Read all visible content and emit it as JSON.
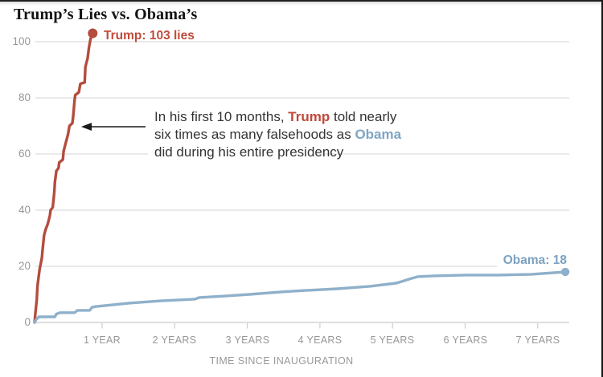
{
  "chart_data": {
    "type": "line",
    "title": "Trump’s Lies vs. Obama’s",
    "xlabel": "TIME SINCE INAUGURATION",
    "x_unit": "years since inauguration",
    "xlim": [
      0,
      7.9
    ],
    "ylim": [
      0,
      105
    ],
    "grid": "horizontal",
    "y_ticks": [
      0,
      20,
      40,
      60,
      80,
      100
    ],
    "y_tick_labels": [
      "0",
      "20",
      "40",
      "60",
      "80",
      "100"
    ],
    "x_ticks": [
      1,
      2,
      3,
      4,
      5,
      6,
      7
    ],
    "x_tick_labels": [
      "1 YEAR",
      "2 YEARS",
      "3 YEARS",
      "4 YEARS",
      "5 YEARS",
      "6 YEARS",
      "7 YEARS"
    ],
    "series": [
      {
        "name": "Trump",
        "label": "Trump: 103 lies",
        "final_value": 103,
        "color": "#b34d3e",
        "label_color": "#c14b3b",
        "points": [
          [
            0.07,
            0
          ],
          [
            0.08,
            3
          ],
          [
            0.1,
            8
          ],
          [
            0.11,
            13
          ],
          [
            0.14,
            19
          ],
          [
            0.17,
            23
          ],
          [
            0.18,
            26
          ],
          [
            0.2,
            31
          ],
          [
            0.22,
            33
          ],
          [
            0.25,
            35
          ],
          [
            0.28,
            38
          ],
          [
            0.29,
            40
          ],
          [
            0.32,
            41
          ],
          [
            0.34,
            46
          ],
          [
            0.35,
            50
          ],
          [
            0.37,
            54
          ],
          [
            0.4,
            55
          ],
          [
            0.41,
            57
          ],
          [
            0.46,
            58
          ],
          [
            0.47,
            61
          ],
          [
            0.5,
            64
          ],
          [
            0.53,
            67
          ],
          [
            0.55,
            70
          ],
          [
            0.59,
            71
          ],
          [
            0.6,
            73
          ],
          [
            0.61,
            76
          ],
          [
            0.62,
            79
          ],
          [
            0.63,
            81
          ],
          [
            0.68,
            82
          ],
          [
            0.7,
            85
          ],
          [
            0.76,
            85.5
          ],
          [
            0.77,
            91
          ],
          [
            0.8,
            94
          ],
          [
            0.82,
            98
          ],
          [
            0.84,
            101
          ],
          [
            0.87,
            103
          ]
        ]
      },
      {
        "name": "Obama",
        "label": "Obama: 18",
        "final_value": 18,
        "color": "#8fb0ca",
        "label_color": "#7da2c1",
        "points": [
          [
            0.07,
            0
          ],
          [
            0.09,
            1
          ],
          [
            0.13,
            2
          ],
          [
            0.17,
            2
          ],
          [
            0.35,
            2
          ],
          [
            0.37,
            3
          ],
          [
            0.42,
            3.5
          ],
          [
            0.62,
            3.5
          ],
          [
            0.66,
            4.3
          ],
          [
            0.83,
            4.3
          ],
          [
            0.86,
            5.4
          ],
          [
            0.92,
            5.7
          ],
          [
            1.37,
            6.9
          ],
          [
            1.81,
            7.7
          ],
          [
            2.28,
            8.3
          ],
          [
            2.34,
            8.9
          ],
          [
            2.69,
            9.4
          ],
          [
            3.03,
            10
          ],
          [
            3.47,
            10.9
          ],
          [
            3.8,
            11.4
          ],
          [
            4.24,
            12
          ],
          [
            4.69,
            12.9
          ],
          [
            5.05,
            14
          ],
          [
            5.13,
            14.6
          ],
          [
            5.26,
            15.7
          ],
          [
            5.35,
            16.3
          ],
          [
            5.57,
            16.6
          ],
          [
            6.01,
            16.9
          ],
          [
            6.46,
            16.9
          ],
          [
            6.9,
            17.1
          ],
          [
            7.38,
            18
          ]
        ]
      }
    ],
    "annotation": {
      "line1_pre": "In his first 10 months, ",
      "line1_trump": "Trump",
      "line1_post": " told nearly",
      "line2_pre": "six times as many falsehoods as ",
      "line2_obama": "Obama",
      "line3": "did during his entire presidency"
    }
  }
}
